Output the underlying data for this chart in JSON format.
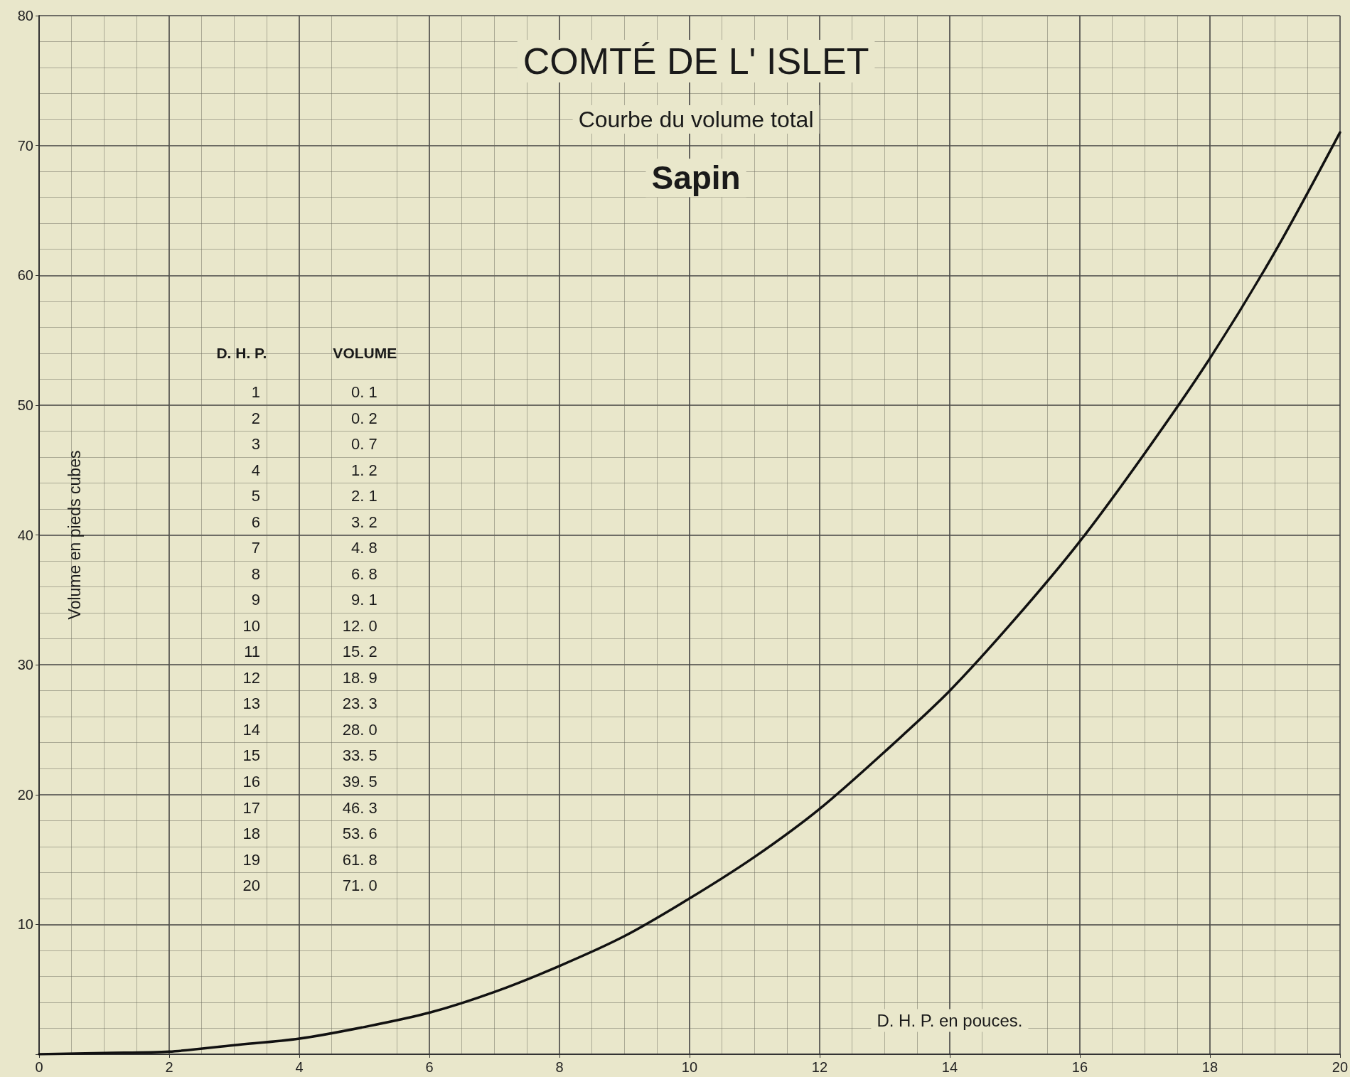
{
  "chart_data": {
    "type": "line",
    "title": "COMTÉ DE L' ISLET",
    "subtitle": "Courbe du volume total",
    "xlabel": "D. H. P. en pouces.",
    "ylabel": "Volume en pieds cubes",
    "annotations": [
      "Sapin",
      "D. H. P.",
      "VOLUME",
      "1",
      "0. 1",
      "2",
      "0. 2",
      "3",
      "0. 7",
      "4",
      "1. 2",
      "5",
      "2. 1",
      "6",
      "3. 2",
      "7",
      "4. 8",
      "8",
      "6. 8",
      "9",
      "9. 1",
      "10",
      "12. 0",
      "11",
      "15. 2",
      "12",
      "18. 9",
      "13",
      "23. 3",
      "14",
      "28. 0",
      "15",
      "33. 5",
      "16",
      "39. 5",
      "17",
      "46. 3",
      "18",
      "53. 6",
      "19",
      "61. 8",
      "20",
      "71. 0"
    ],
    "x": [
      0,
      1,
      2,
      3,
      4,
      5,
      6,
      7,
      8,
      9,
      10,
      11,
      12,
      13,
      14,
      15,
      16,
      17,
      18,
      19,
      20
    ],
    "series": [
      {
        "color": "#111111",
        "values": [
          0,
          0.1,
          0.2,
          0.7,
          1.2,
          2.1,
          3.2,
          4.8,
          6.8,
          9.1,
          12.0,
          15.2,
          18.9,
          23.3,
          28.0,
          33.5,
          39.5,
          46.3,
          53.6,
          61.8,
          71.0
        ]
      }
    ],
    "xlim": [
      0,
      20
    ],
    "xticks": [
      0,
      2,
      4,
      6,
      8,
      10,
      12,
      14,
      16,
      18,
      20
    ],
    "ylim": [
      0,
      80
    ],
    "yticks": [
      {
        "value": 0,
        "label": null
      },
      10,
      20,
      30,
      40,
      50,
      60,
      70,
      80
    ],
    "grid": true,
    "marker": "none",
    "line_style": "solid"
  }
}
